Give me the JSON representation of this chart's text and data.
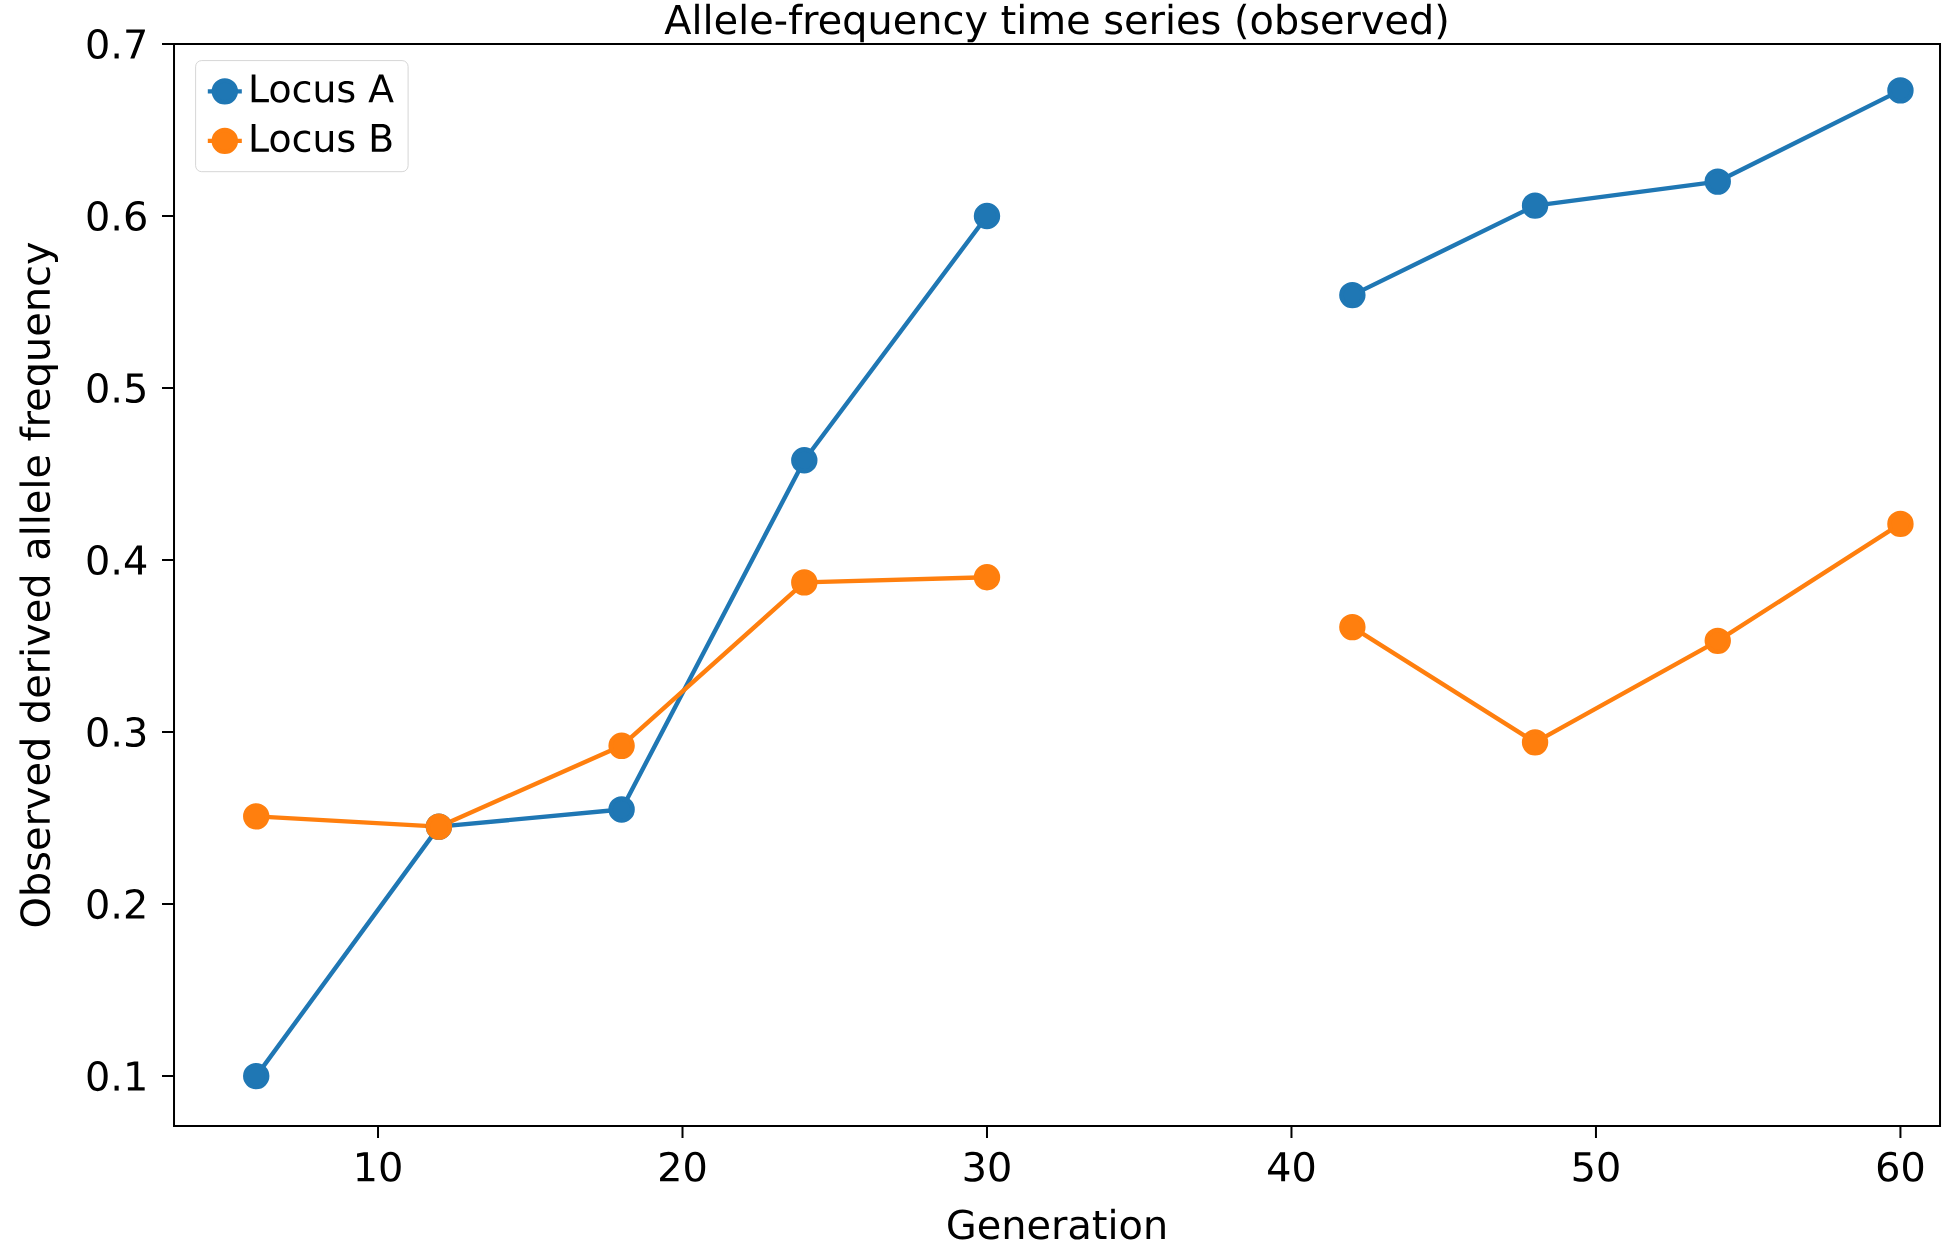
{
  "chart_data": {
    "type": "line",
    "title": "Allele-frequency time series (observed)",
    "xlabel": "Generation",
    "ylabel": "Observed derived allele frequency",
    "x": [
      6,
      12,
      18,
      24,
      30,
      36,
      42,
      48,
      54,
      60
    ],
    "series": [
      {
        "name": "Locus A",
        "color": "#1f77b4",
        "values": [
          0.1,
          0.245,
          0.255,
          0.458,
          0.6,
          null,
          0.554,
          0.606,
          0.62,
          0.673
        ]
      },
      {
        "name": "Locus B",
        "color": "#ff7f0e",
        "values": [
          0.251,
          0.245,
          0.292,
          0.387,
          0.39,
          null,
          0.361,
          0.294,
          0.353,
          0.421
        ]
      }
    ],
    "xlim": [
      3.3,
      61.3
    ],
    "ylim": [
      0.071,
      0.7
    ],
    "xticks": [
      10,
      20,
      30,
      40,
      50,
      60
    ],
    "yticks": [
      0.1,
      0.2,
      0.3,
      0.4,
      0.5,
      0.6,
      0.7
    ],
    "legend": "top left",
    "marker": "circle",
    "line_style": "solid",
    "grid": false
  }
}
